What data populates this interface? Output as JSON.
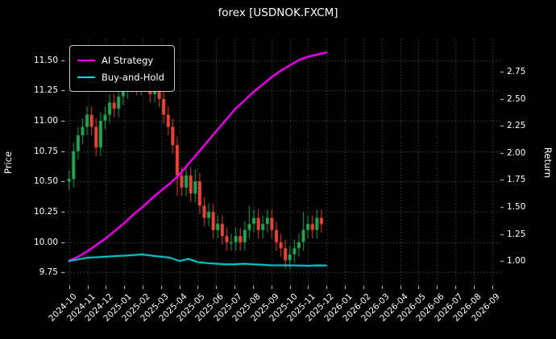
{
  "figure": {
    "title": "forex [USDNOK.FXCM]"
  },
  "colors": {
    "background": "#000000",
    "text": "#ffffff",
    "grid": "rgba(255,255,255,0.38)",
    "candle_up": "#27a556",
    "candle_down": "#e8483c",
    "ai_strategy": "#ff00ff",
    "buy_and_hold": "#00e1e1"
  },
  "chart_data": {
    "type": "candlestick+line",
    "title": "forex [USDNOK.FXCM]",
    "legend_position": "upper-left",
    "grid": "dotted",
    "left_axis": {
      "label": "Price",
      "ticks": [
        9.75,
        10.0,
        10.25,
        10.5,
        10.75,
        11.0,
        11.25,
        11.5
      ],
      "range": [
        9.64,
        11.67
      ]
    },
    "right_axis": {
      "label": "Return",
      "ticks": [
        1.0,
        1.25,
        1.5,
        1.75,
        2.0,
        2.25,
        2.5,
        2.75
      ],
      "range": [
        0.77,
        3.05
      ]
    },
    "x_axis": {
      "range": [
        -0.25,
        23.45
      ],
      "tick_positions": [
        0,
        1,
        2,
        3,
        4,
        5,
        6,
        7,
        8,
        9,
        10,
        11,
        12,
        13,
        14,
        15,
        16,
        17,
        18,
        19,
        20,
        21,
        22,
        23
      ],
      "tick_labels": [
        "2024-10",
        "2024-11",
        "2024-12",
        "2025-01",
        "2025-02",
        "2025-03",
        "2025-04",
        "2025-05",
        "2025-06",
        "2025-07",
        "2025-08",
        "2025-09",
        "2025-10",
        "2025-11",
        "2025-12",
        "2026-01",
        "2026-02",
        "2026-03",
        "2026-04",
        "2026-05",
        "2026-06",
        "2026-07",
        "2026-08",
        "2026-09"
      ]
    },
    "legend": [
      {
        "label": "AI Strategy",
        "color": "#ff00ff"
      },
      {
        "label": "Buy-and-Hold",
        "color": "#00e1e1"
      }
    ],
    "candles": {
      "t_start": 0,
      "t_step": 0.245,
      "up_color": "#27a556",
      "down_color": "#e8483c",
      "ohlc": [
        [
          10.5,
          10.59,
          10.43,
          10.52
        ],
        [
          10.52,
          10.82,
          10.45,
          10.75
        ],
        [
          10.75,
          10.95,
          10.68,
          10.88
        ],
        [
          10.88,
          11.02,
          10.81,
          10.95
        ],
        [
          10.95,
          11.12,
          10.88,
          11.05
        ],
        [
          11.05,
          11.12,
          10.88,
          10.95
        ],
        [
          10.95,
          11.02,
          10.71,
          10.78
        ],
        [
          10.78,
          11.07,
          10.71,
          11.0
        ],
        [
          11.0,
          11.12,
          10.93,
          11.05
        ],
        [
          11.05,
          11.22,
          10.98,
          11.15
        ],
        [
          11.15,
          11.22,
          11.03,
          11.1
        ],
        [
          11.1,
          11.27,
          11.03,
          11.2
        ],
        [
          11.2,
          11.32,
          11.13,
          11.25
        ],
        [
          11.25,
          11.37,
          11.18,
          11.3
        ],
        [
          11.3,
          11.45,
          11.23,
          11.35
        ],
        [
          11.35,
          11.42,
          11.21,
          11.28
        ],
        [
          11.28,
          11.47,
          11.21,
          11.4
        ],
        [
          11.4,
          11.47,
          11.28,
          11.35
        ],
        [
          11.35,
          11.42,
          11.15,
          11.22
        ],
        [
          11.22,
          11.37,
          11.15,
          11.3
        ],
        [
          11.3,
          11.37,
          11.11,
          11.18
        ],
        [
          11.18,
          11.25,
          10.98,
          11.05
        ],
        [
          11.05,
          11.12,
          10.88,
          10.95
        ],
        [
          10.95,
          11.02,
          10.73,
          10.8
        ],
        [
          10.8,
          10.87,
          10.38,
          10.55
        ],
        [
          10.55,
          10.62,
          10.38,
          10.45
        ],
        [
          10.45,
          10.62,
          10.38,
          10.55
        ],
        [
          10.55,
          10.62,
          10.33,
          10.4
        ],
        [
          10.4,
          10.6,
          10.33,
          10.5
        ],
        [
          10.5,
          10.57,
          10.23,
          10.3
        ],
        [
          10.3,
          10.37,
          10.13,
          10.2
        ],
        [
          10.2,
          10.32,
          10.13,
          10.25
        ],
        [
          10.25,
          10.32,
          10.03,
          10.1
        ],
        [
          10.1,
          10.22,
          10.03,
          10.15
        ],
        [
          10.15,
          10.22,
          9.98,
          10.05
        ],
        [
          10.05,
          10.12,
          9.93,
          10.0
        ],
        [
          10.0,
          10.07,
          9.93,
          10.0
        ],
        [
          10.0,
          10.12,
          9.93,
          10.05
        ],
        [
          10.05,
          10.12,
          9.93,
          10.0
        ],
        [
          10.0,
          10.17,
          9.93,
          10.1
        ],
        [
          10.1,
          10.3,
          10.03,
          10.15
        ],
        [
          10.15,
          10.27,
          10.08,
          10.2
        ],
        [
          10.2,
          10.27,
          10.03,
          10.1
        ],
        [
          10.1,
          10.22,
          10.03,
          10.15
        ],
        [
          10.15,
          10.27,
          10.08,
          10.2
        ],
        [
          10.2,
          10.27,
          10.03,
          10.1
        ],
        [
          10.1,
          10.17,
          9.93,
          10.0
        ],
        [
          10.0,
          10.07,
          9.88,
          9.95
        ],
        [
          9.95,
          10.02,
          9.78,
          9.85
        ],
        [
          9.85,
          9.97,
          9.78,
          9.9
        ],
        [
          9.9,
          10.02,
          9.83,
          9.95
        ],
        [
          9.95,
          10.07,
          9.88,
          10.0
        ],
        [
          10.0,
          10.25,
          9.93,
          10.1
        ],
        [
          10.1,
          10.22,
          10.03,
          10.15
        ],
        [
          10.15,
          10.22,
          10.03,
          10.1
        ],
        [
          10.1,
          10.27,
          10.03,
          10.2
        ],
        [
          10.2,
          10.27,
          10.08,
          10.15
        ]
      ]
    },
    "series": [
      {
        "name": "AI Strategy",
        "axis": "right",
        "color": "#ff00ff",
        "line_width": 2.4,
        "x": [
          0,
          0.5,
          1,
          1.5,
          2,
          2.5,
          3,
          3.5,
          4,
          4.5,
          5,
          5.5,
          6,
          6.5,
          7,
          7.5,
          8,
          8.5,
          9,
          9.5,
          10,
          10.5,
          11,
          11.5,
          12,
          12.5,
          13,
          13.5,
          14
        ],
        "y": [
          1.0,
          1.04,
          1.09,
          1.15,
          1.21,
          1.28,
          1.35,
          1.43,
          1.5,
          1.58,
          1.65,
          1.72,
          1.8,
          1.9,
          2.0,
          2.1,
          2.2,
          2.3,
          2.4,
          2.48,
          2.56,
          2.63,
          2.7,
          2.76,
          2.81,
          2.86,
          2.89,
          2.91,
          2.93
        ]
      },
      {
        "name": "Buy-and-Hold",
        "axis": "right",
        "color": "#00e1e1",
        "line_width": 2.0,
        "x": [
          0,
          0.5,
          1,
          1.5,
          2,
          2.5,
          3,
          3.5,
          4,
          4.5,
          5,
          5.5,
          6,
          6.5,
          7,
          7.5,
          8,
          8.5,
          9,
          9.5,
          10,
          10.5,
          11,
          11.5,
          12,
          12.5,
          13,
          13.5,
          14
        ],
        "y": [
          1.0,
          1.015,
          1.03,
          1.035,
          1.04,
          1.045,
          1.05,
          1.055,
          1.06,
          1.05,
          1.04,
          1.03,
          1.0,
          1.02,
          0.99,
          0.98,
          0.975,
          0.97,
          0.97,
          0.975,
          0.97,
          0.965,
          0.96,
          0.96,
          0.96,
          0.958,
          0.957,
          0.96,
          0.958
        ]
      }
    ]
  }
}
